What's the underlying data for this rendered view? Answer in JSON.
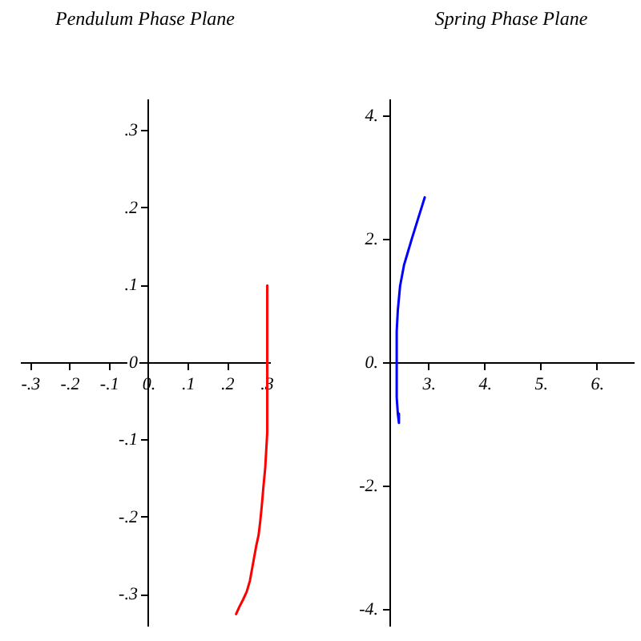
{
  "chart_data": [
    {
      "type": "line",
      "title": "Pendulum Phase Plane",
      "marker": "none",
      "line_style": "solid",
      "series": [
        {
          "color": "#ff0000",
          "x": [
            0.3,
            0.3,
            0.295,
            0.29,
            0.286,
            0.282,
            0.278,
            0.272,
            0.267,
            0.261,
            0.256,
            0.248,
            0.239,
            0.229,
            0.221
          ],
          "values": [
            0.1,
            -0.09,
            -0.135,
            -0.162,
            -0.186,
            -0.206,
            -0.223,
            -0.237,
            -0.251,
            -0.268,
            -0.282,
            -0.296,
            -0.306,
            -0.316,
            -0.325
          ]
        }
      ],
      "xlim": [
        -0.325,
        0.305
      ],
      "ylim": [
        -0.34,
        0.34
      ],
      "xticks": [
        {
          "value": -0.3,
          "label": "-.3"
        },
        {
          "value": -0.2,
          "label": "-.2"
        },
        {
          "value": -0.1,
          "label": "-.1"
        },
        {
          "value": 0,
          "label": "0."
        },
        {
          "value": 0.1,
          "label": ".1"
        },
        {
          "value": 0.2,
          "label": ".2"
        },
        {
          "value": 0.3,
          "label": ".3"
        }
      ],
      "yticks": [
        {
          "value": -0.3,
          "label": "-.3"
        },
        {
          "value": -0.2,
          "label": "-.2"
        },
        {
          "value": -0.1,
          "label": "-.1"
        },
        {
          "value": 0,
          "label": "0"
        },
        {
          "value": 0.1,
          "label": ".1"
        },
        {
          "value": 0.2,
          "label": ".2"
        },
        {
          "value": 0.3,
          "label": ".3"
        }
      ]
    },
    {
      "type": "line",
      "title": "Spring Phase Plane",
      "marker": "none",
      "line_style": "solid",
      "series": [
        {
          "color": "#0000ff",
          "x": [
            2.92,
            2.81,
            2.69,
            2.55,
            2.48,
            2.44,
            2.42,
            2.42,
            2.44,
            2.46
          ],
          "values": [
            2.69,
            2.37,
            2.02,
            1.59,
            1.25,
            0.86,
            0.52,
            -0.56,
            -0.82,
            -0.97
          ]
        }
      ],
      "xlim": [
        2.29,
        6.63
      ],
      "ylim": [
        -4.26,
        4.27
      ],
      "xticks": [
        {
          "value": 3,
          "label": "3."
        },
        {
          "value": 4,
          "label": "4."
        },
        {
          "value": 5,
          "label": "5."
        },
        {
          "value": 6,
          "label": "6."
        }
      ],
      "yticks": [
        {
          "value": -4,
          "label": "-4."
        },
        {
          "value": -2,
          "label": "-2."
        },
        {
          "value": 0,
          "label": "0."
        },
        {
          "value": 2,
          "label": "2."
        },
        {
          "value": 4,
          "label": "4."
        }
      ]
    }
  ]
}
